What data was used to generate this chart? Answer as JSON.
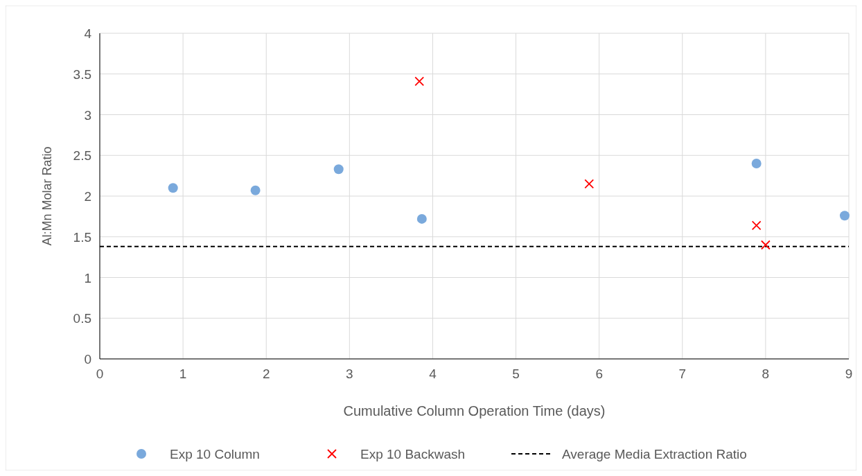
{
  "chart_data": {
    "type": "scatter",
    "xlabel": "Cumulative Column Operation Time (days)",
    "ylabel": "Al:Mn Molar Ratio",
    "xlim": [
      0,
      9
    ],
    "xticks": [
      0,
      1,
      2,
      3,
      4,
      5,
      6,
      7,
      8,
      9
    ],
    "ylim": [
      0,
      4
    ],
    "yticks": [
      0,
      {
        "value": 0.5,
        "label": "0.5"
      },
      1,
      {
        "value": 1.5,
        "label": "1.5"
      },
      2,
      {
        "value": 2.5,
        "label": "2.5"
      },
      3,
      {
        "value": 3.5,
        "label": "3.5"
      },
      4
    ],
    "grid": true,
    "legend": "bottom",
    "series": [
      {
        "name": "Exp 10 Column",
        "color": "#7aa9dc",
        "marker": "circle",
        "x": [
          0.88,
          1.87,
          2.87,
          3.87,
          7.89,
          8.95
        ],
        "values": [
          2.1,
          2.07,
          2.33,
          1.72,
          2.4,
          1.76
        ]
      },
      {
        "name": "Exp 10 Backwash",
        "color": "#ff0000",
        "marker": "cross",
        "x": [
          3.84,
          5.88,
          7.89,
          8.0
        ],
        "values": [
          3.41,
          2.15,
          1.64,
          1.4
        ]
      }
    ],
    "ref_lines": [
      {
        "axis": "y",
        "value": 1.38,
        "label": "Average Media Extraction Ratio",
        "color": "#000000",
        "line_style": "dashed"
      }
    ]
  }
}
